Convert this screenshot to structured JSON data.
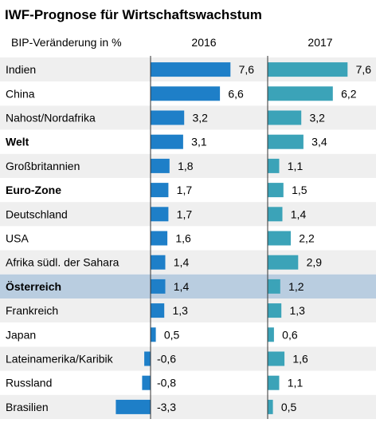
{
  "chart_data": {
    "type": "bar",
    "title": "IWF-Prognose für Wirtschaftswachstum",
    "subtitle": "BIP-Veränderung in %",
    "categories": [
      "Indien",
      "China",
      "Nahost/Nordafrika",
      "Welt",
      "Großbritannien",
      "Euro-Zone",
      "Deutschland",
      "USA",
      "Afrika südl. der Sahara",
      "Österreich",
      "Frankreich",
      "Japan",
      "Lateinamerika/Karibik",
      "Russland",
      "Brasilien"
    ],
    "bold_categories": [
      "Welt",
      "Euro-Zone",
      "Österreich"
    ],
    "highlight_category": "Österreich",
    "series": [
      {
        "name": "2016",
        "values": [
          7.6,
          6.6,
          3.2,
          3.1,
          1.8,
          1.7,
          1.7,
          1.6,
          1.4,
          1.4,
          1.3,
          0.5,
          -0.6,
          -0.8,
          -3.3
        ],
        "labels": [
          "7,6",
          "6,6",
          "3,2",
          "3,1",
          "1,8",
          "1,7",
          "1,7",
          "1,6",
          "1,4",
          "1,4",
          "1,3",
          "0,5",
          "-0,6",
          "-0,8",
          "-3,3"
        ],
        "color": "#1e7fc8"
      },
      {
        "name": "2017",
        "values": [
          7.6,
          6.2,
          3.2,
          3.4,
          1.1,
          1.5,
          1.4,
          2.2,
          2.9,
          1.2,
          1.3,
          0.6,
          1.6,
          1.1,
          0.5
        ],
        "labels": [
          "7,6",
          "6,2",
          "3,2",
          "3,4",
          "1,1",
          "1,5",
          "1,4",
          "2,2",
          "2,9",
          "1,2",
          "1,3",
          "0,6",
          "1,6",
          "1,1",
          "0,5"
        ],
        "color": "#3ba3b8"
      }
    ],
    "colors": {
      "row_stripe": "#efefef",
      "row_highlight": "#b9cde0",
      "axis_line": "#333333"
    },
    "grid": false,
    "legend": "none"
  }
}
